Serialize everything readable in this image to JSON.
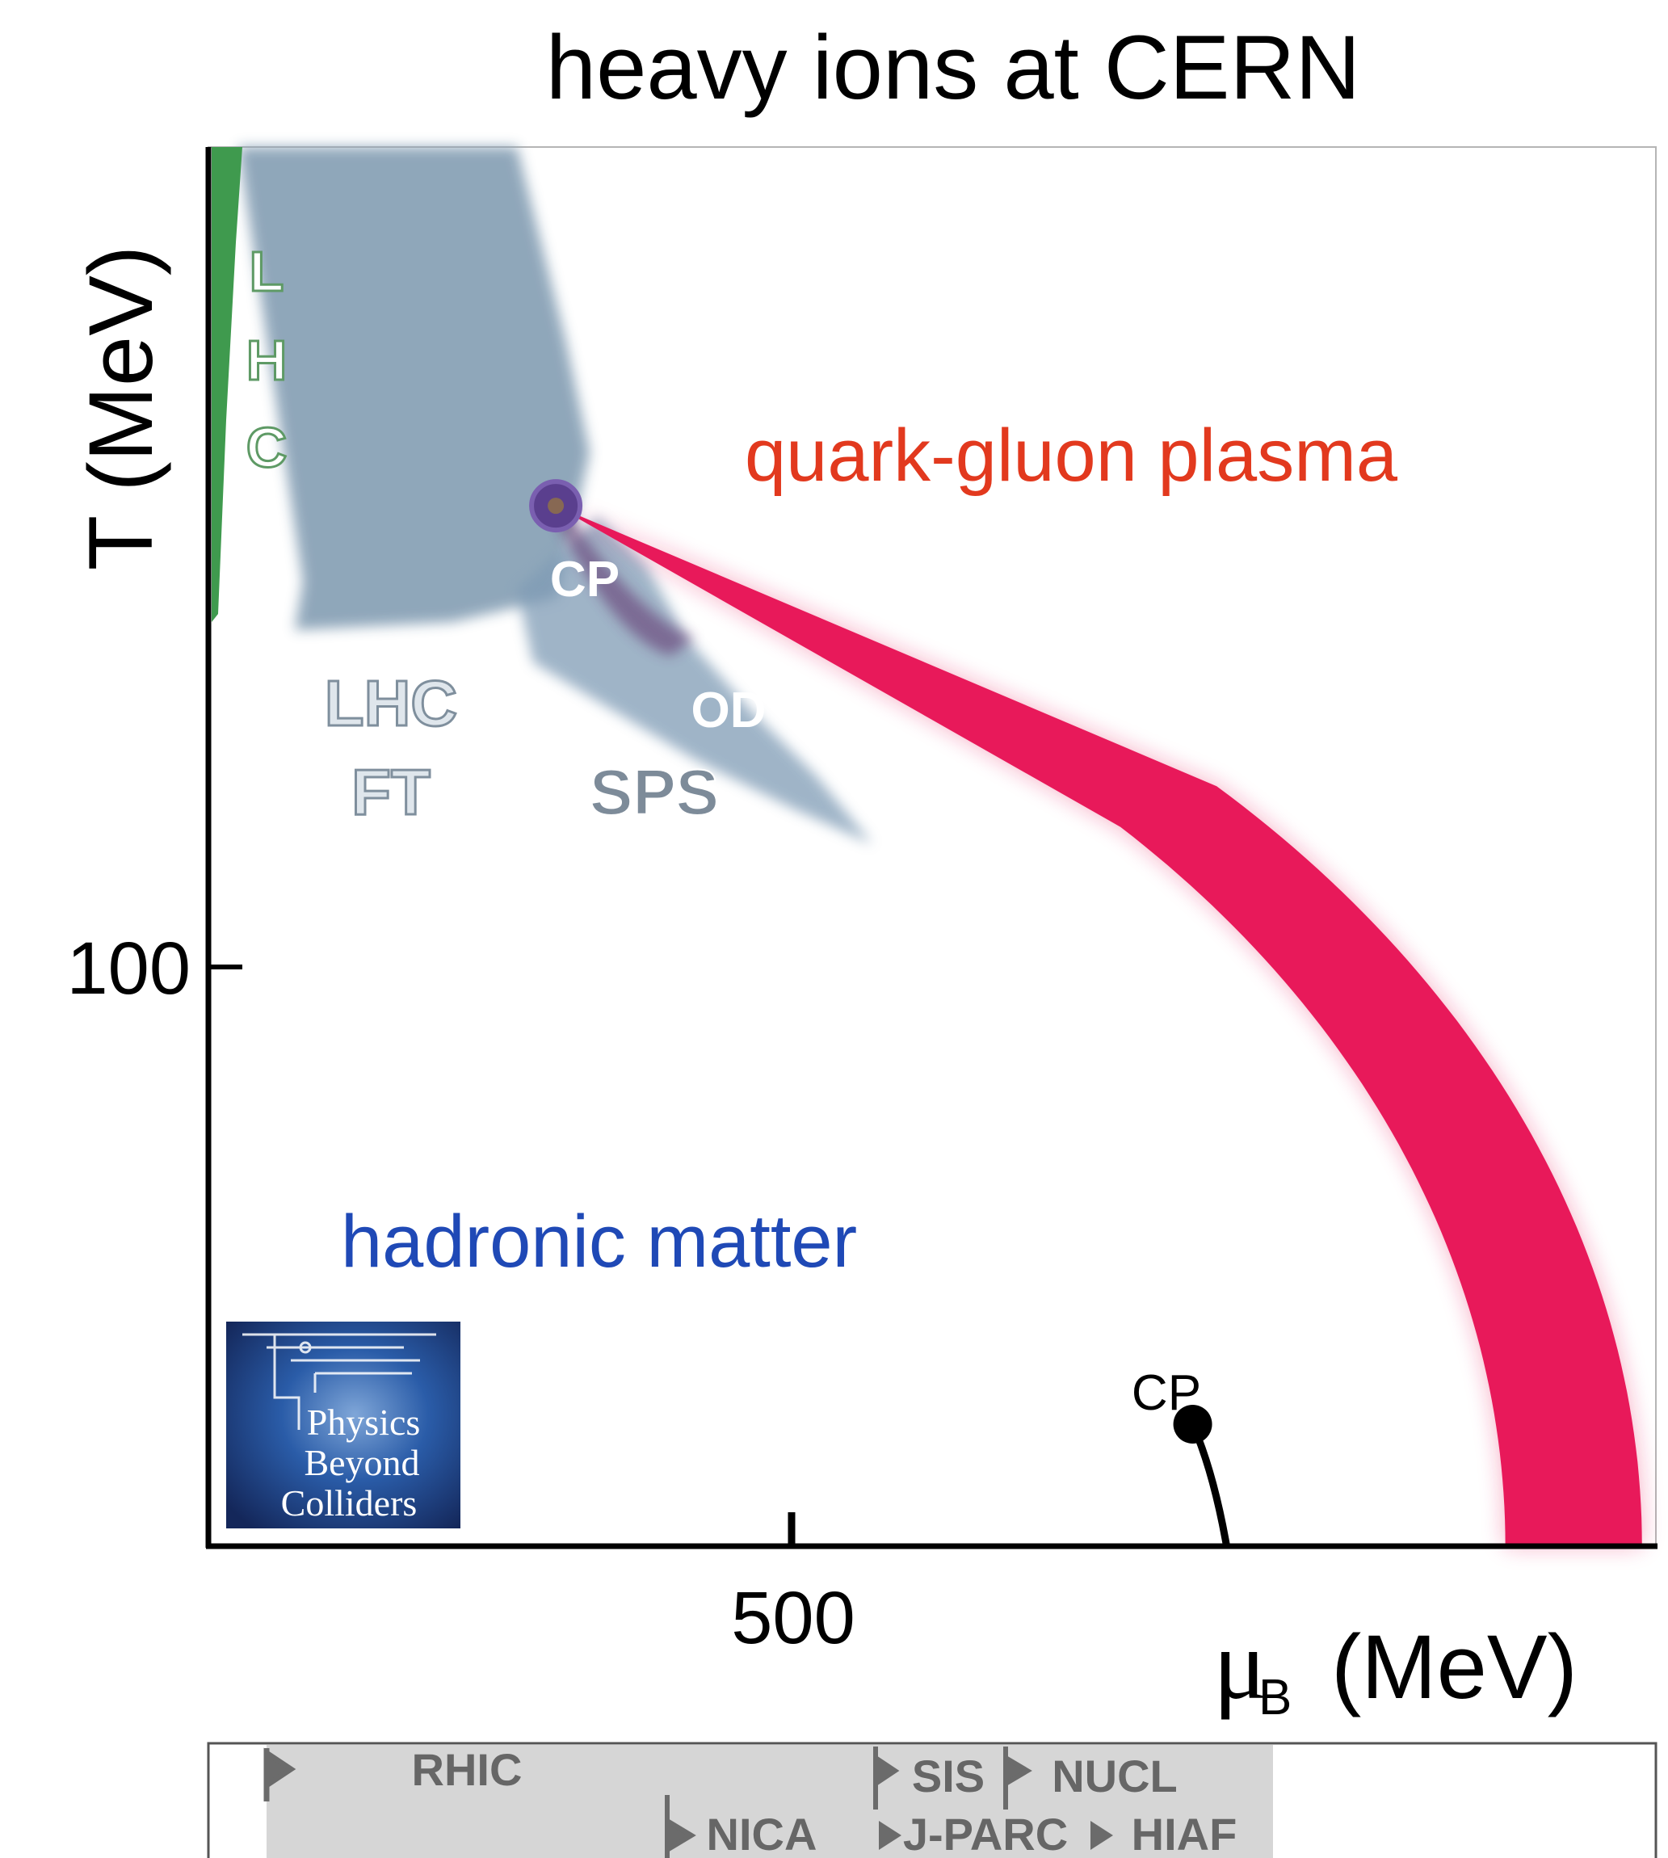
{
  "colors": {
    "qgp_band": "#e8195a",
    "qgp_label": "#e2391e",
    "hadronic_label": "#1f49b6",
    "lhc_green": "#3f9a4e",
    "sps_region": "#7f9bb5",
    "lhc_ft_region": "#8aa3b7",
    "label_gray": "#6d7d8c",
    "cp_marker": "#5a3f8e",
    "axis": "#000000",
    "panel_gray": "#d6d6d6"
  },
  "chart_data": {
    "type": "area",
    "title": "heavy ions at CERN",
    "xlabel": "μ",
    "xlabel_sub": "B",
    "xlabel_unit": "(MeV)",
    "ylabel": "T (MeV)",
    "x_ticks": [
      500
    ],
    "x_tick_labels": [
      "500"
    ],
    "y_ticks": [
      100
    ],
    "y_tick_labels": [
      "100"
    ],
    "xlim": [
      0,
      1250
    ],
    "ylim": [
      0,
      195
    ],
    "grid": false,
    "regions": [
      {
        "name": "quark-gluon plasma",
        "label": "quark-gluon plasma"
      },
      {
        "name": "hadronic matter",
        "label": "hadronic matter"
      }
    ],
    "annotations": {
      "lhc": [
        "L",
        "H",
        "C"
      ],
      "lhc_ft": [
        "LHC",
        "FT"
      ],
      "sps": "SPS",
      "od": "OD",
      "cp_upper": "CP",
      "cp_lower": "CP"
    },
    "critical_point_upper": {
      "mu_B": 300,
      "T": 145
    },
    "critical_point_lower": {
      "mu_B": 850,
      "T": 17
    },
    "crossover_band": {
      "mu_B_at_T0": [
        1120,
        1238
      ],
      "T_at_mu0": [
        141,
        149
      ]
    }
  },
  "logo": {
    "lines": [
      "Physics",
      "Beyond",
      "Colliders"
    ]
  },
  "facilities": {
    "row1": [
      "RHIC",
      "SIS",
      "NUCL"
    ],
    "row2": [
      "NICA",
      "J-PARC",
      "HIAF"
    ]
  }
}
